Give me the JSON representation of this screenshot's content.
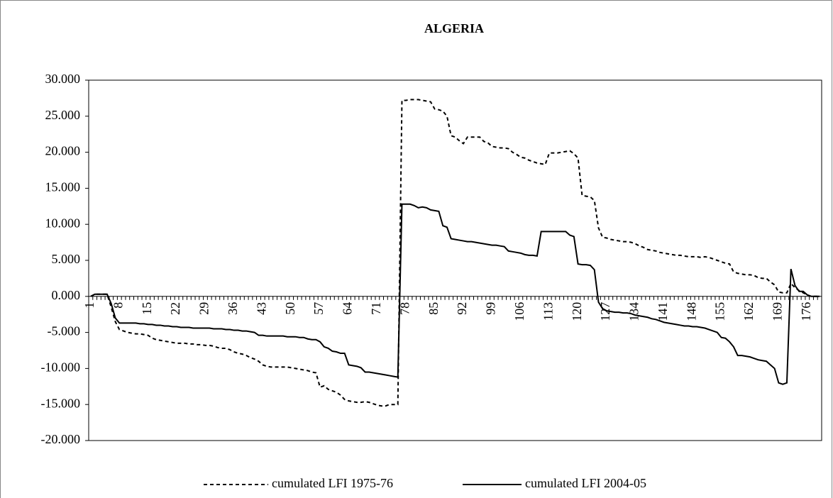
{
  "chart_data": {
    "type": "line",
    "title": "ALGERIA",
    "categories": [
      1,
      null,
      null,
      null,
      null,
      null,
      null,
      8,
      null,
      null,
      null,
      null,
      null,
      null,
      15,
      null,
      null,
      null,
      null,
      null,
      null,
      22,
      null,
      null,
      null,
      null,
      null,
      null,
      29,
      null,
      null,
      null,
      null,
      null,
      null,
      36,
      null,
      null,
      null,
      null,
      null,
      null,
      43,
      null,
      null,
      null,
      null,
      null,
      null,
      50,
      null,
      null,
      null,
      null,
      null,
      null,
      57,
      null,
      null,
      null,
      null,
      null,
      null,
      64,
      null,
      null,
      null,
      null,
      null,
      null,
      71,
      null,
      null,
      null,
      null,
      null,
      null,
      78,
      null,
      null,
      null,
      null,
      null,
      null,
      85,
      null,
      null,
      null,
      null,
      null,
      null,
      92,
      null,
      null,
      null,
      null,
      null,
      null,
      99,
      null,
      null,
      null,
      null,
      null,
      null,
      106,
      null,
      null,
      null,
      null,
      null,
      null,
      113,
      null,
      null,
      null,
      null,
      null,
      null,
      120,
      null,
      null,
      null,
      null,
      null,
      null,
      127,
      null,
      null,
      null,
      null,
      null,
      null,
      134,
      null,
      null,
      null,
      null,
      null,
      null,
      141,
      null,
      null,
      null,
      null,
      null,
      null,
      148,
      null,
      null,
      null,
      null,
      null,
      null,
      155,
      null,
      null,
      null,
      null,
      null,
      null,
      162,
      null,
      null,
      null,
      null,
      null,
      null,
      169,
      null,
      null,
      null,
      null,
      null,
      null,
      176,
      null,
      null,
      null
    ],
    "series": [
      {
        "name": "cumulated LFI 1975-76",
        "color": "#000000",
        "line_style": "dashed",
        "values": [
          0,
          0.3,
          0.3,
          0.3,
          0.3,
          -1.5,
          -3.5,
          -4.6,
          -4.8,
          -5.0,
          -5.1,
          -5.2,
          -5.2,
          -5.3,
          -5.4,
          -5.8,
          -6.0,
          -6.1,
          -6.2,
          -6.3,
          -6.4,
          -6.5,
          -6.5,
          -6.5,
          -6.6,
          -6.6,
          -6.7,
          -6.7,
          -6.8,
          -6.8,
          -6.9,
          -7.1,
          -7.2,
          -7.2,
          -7.4,
          -7.7,
          -7.9,
          -8.0,
          -8.2,
          -8.5,
          -8.7,
          -9.0,
          -9.5,
          -9.7,
          -9.8,
          -9.8,
          -9.8,
          -9.8,
          -9.8,
          -9.9,
          -10.0,
          -10.1,
          -10.2,
          -10.3,
          -10.5,
          -10.6,
          -12.6,
          -12.4,
          -12.9,
          -13.1,
          -13.3,
          -13.7,
          -14.3,
          -14.5,
          -14.6,
          -14.7,
          -14.7,
          -14.6,
          -14.7,
          -14.9,
          -15.1,
          -15.2,
          -15.2,
          -15.0,
          -15.0,
          -15.0,
          27.2,
          27.2,
          27.3,
          27.3,
          27.3,
          27.2,
          27.1,
          27.0,
          26.0,
          25.9,
          25.7,
          25.0,
          22.3,
          22.1,
          21.6,
          21.2,
          22.1,
          22.1,
          22.1,
          22.1,
          21.5,
          21.3,
          20.8,
          20.7,
          20.6,
          20.6,
          20.5,
          20.0,
          19.7,
          19.3,
          19.2,
          18.9,
          18.7,
          18.5,
          18.4,
          18.3,
          19.9,
          19.9,
          19.9,
          20.0,
          20.1,
          20.2,
          19.8,
          19.2,
          14.0,
          13.9,
          13.8,
          13.3,
          9.5,
          8.2,
          8.1,
          7.9,
          7.8,
          7.7,
          7.6,
          7.6,
          7.5,
          7.3,
          7.0,
          6.8,
          6.5,
          6.4,
          6.3,
          6.1,
          6.0,
          5.9,
          5.8,
          5.7,
          5.7,
          5.6,
          5.5,
          5.5,
          5.5,
          5.4,
          5.5,
          5.4,
          5.2,
          5.0,
          4.8,
          4.6,
          4.5,
          3.4,
          3.2,
          3.1,
          3.0,
          3.0,
          2.9,
          2.6,
          2.5,
          2.5,
          2.0,
          1.6,
          0.6,
          0.5,
          0.5,
          1.8,
          1.2,
          0.8,
          0.5,
          0.2,
          0,
          0,
          0
        ]
      },
      {
        "name": "cumulated LFI 2004-05",
        "color": "#000000",
        "line_style": "solid",
        "values": [
          0,
          0.3,
          0.3,
          0.3,
          0.3,
          -1.0,
          -3.0,
          -3.7,
          -3.7,
          -3.7,
          -3.7,
          -3.7,
          -3.8,
          -3.8,
          -3.9,
          -3.9,
          -4.0,
          -4.0,
          -4.1,
          -4.1,
          -4.2,
          -4.2,
          -4.3,
          -4.3,
          -4.3,
          -4.4,
          -4.4,
          -4.4,
          -4.4,
          -4.4,
          -4.5,
          -4.5,
          -4.5,
          -4.6,
          -4.6,
          -4.7,
          -4.7,
          -4.8,
          -4.8,
          -4.9,
          -5.0,
          -5.4,
          -5.4,
          -5.5,
          -5.5,
          -5.5,
          -5.5,
          -5.5,
          -5.6,
          -5.6,
          -5.6,
          -5.7,
          -5.7,
          -5.9,
          -6.0,
          -6.0,
          -6.3,
          -7.0,
          -7.2,
          -7.6,
          -7.7,
          -7.9,
          -7.9,
          -9.5,
          -9.6,
          -9.7,
          -9.9,
          -10.5,
          -10.5,
          -10.6,
          -10.7,
          -10.8,
          -10.9,
          -11.0,
          -11.1,
          -11.2,
          12.8,
          12.8,
          12.8,
          12.6,
          12.3,
          12.4,
          12.3,
          12.0,
          11.9,
          11.8,
          9.8,
          9.6,
          8.0,
          7.9,
          7.8,
          7.7,
          7.6,
          7.6,
          7.5,
          7.4,
          7.3,
          7.2,
          7.1,
          7.1,
          7.0,
          6.9,
          6.3,
          6.2,
          6.1,
          6.0,
          5.8,
          5.7,
          5.7,
          5.6,
          9.0,
          9.0,
          9.0,
          9.0,
          9.0,
          9.0,
          9.0,
          8.5,
          8.3,
          4.5,
          4.4,
          4.4,
          4.3,
          3.7,
          -0.8,
          -1.7,
          -2.0,
          -2.1,
          -2.2,
          -2.2,
          -2.3,
          -2.3,
          -2.4,
          -2.6,
          -2.7,
          -2.8,
          -2.9,
          -3.1,
          -3.2,
          -3.4,
          -3.6,
          -3.7,
          -3.8,
          -3.9,
          -4.0,
          -4.1,
          -4.1,
          -4.2,
          -4.2,
          -4.3,
          -4.4,
          -4.6,
          -4.8,
          -5.0,
          -5.7,
          -5.8,
          -6.3,
          -7.0,
          -8.2,
          -8.2,
          -8.3,
          -8.4,
          -8.6,
          -8.8,
          -8.9,
          -9.0,
          -9.5,
          -10.0,
          -12.0,
          -12.2,
          -12.0,
          3.8,
          1.5,
          0.7,
          0.7,
          0.2,
          0,
          0,
          0
        ]
      }
    ],
    "ylim": [
      -20,
      30
    ],
    "yticks": [
      {
        "value": -20,
        "label": "-20.000"
      },
      {
        "value": -15,
        "label": "-15.000"
      },
      {
        "value": -10,
        "label": "-10.000"
      },
      {
        "value": -5,
        "label": "-5.000"
      },
      {
        "value": 0,
        "label": "0.000"
      },
      {
        "value": 5,
        "label": "5.000"
      },
      {
        "value": 10,
        "label": "10.000"
      },
      {
        "value": 15,
        "label": "15.000"
      },
      {
        "value": 20,
        "label": "20.000"
      },
      {
        "value": 25,
        "label": "25.000"
      },
      {
        "value": 30,
        "label": "30.000"
      }
    ],
    "grid": false,
    "legend": "bottom"
  }
}
